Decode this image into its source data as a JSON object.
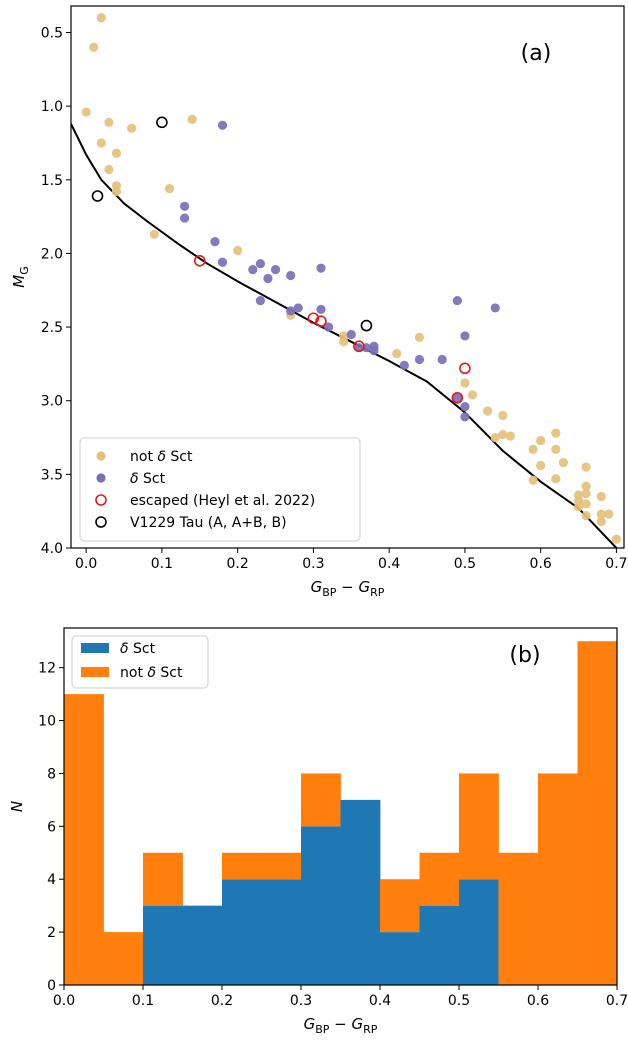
{
  "chart_data": [
    {
      "type": "scatter",
      "panel_label": "(a)",
      "xlabel": "G_BP − G_RP",
      "ylabel": "M_G",
      "xlim": [
        -0.02,
        0.71
      ],
      "ylim": [
        4.0,
        0.32
      ],
      "y_inverted": true,
      "xticks": [
        "0.0",
        "0.1",
        "0.2",
        "0.3",
        "0.4",
        "0.5",
        "0.6",
        "0.7"
      ],
      "yticks": [
        "0.5",
        "1.0",
        "1.5",
        "2.0",
        "2.5",
        "3.0",
        "3.5",
        "4.0"
      ],
      "legend_position": "lower-left",
      "series": [
        {
          "name": "not δ Sct",
          "color": "#e5c07b",
          "points": [
            [
              0.02,
              0.4
            ],
            [
              0.01,
              0.6
            ],
            [
              0.0,
              1.04
            ],
            [
              0.03,
              1.11
            ],
            [
              0.02,
              1.25
            ],
            [
              0.06,
              1.15
            ],
            [
              0.14,
              1.09
            ],
            [
              0.04,
              1.32
            ],
            [
              0.03,
              1.43
            ],
            [
              0.04,
              1.54
            ],
            [
              0.04,
              1.58
            ],
            [
              0.11,
              1.56
            ],
            [
              0.09,
              1.87
            ],
            [
              0.2,
              1.98
            ],
            [
              0.27,
              2.42
            ],
            [
              0.34,
              2.56
            ],
            [
              0.34,
              2.6
            ],
            [
              0.41,
              2.68
            ],
            [
              0.44,
              2.57
            ],
            [
              0.5,
              2.88
            ],
            [
              0.51,
              2.96
            ],
            [
              0.53,
              3.07
            ],
            [
              0.55,
              3.1
            ],
            [
              0.54,
              3.25
            ],
            [
              0.55,
              3.23
            ],
            [
              0.56,
              3.24
            ],
            [
              0.59,
              3.33
            ],
            [
              0.6,
              3.27
            ],
            [
              0.62,
              3.22
            ],
            [
              0.62,
              3.33
            ],
            [
              0.6,
              3.44
            ],
            [
              0.63,
              3.42
            ],
            [
              0.59,
              3.54
            ],
            [
              0.62,
              3.53
            ],
            [
              0.65,
              3.64
            ],
            [
              0.65,
              3.68
            ],
            [
              0.66,
              3.45
            ],
            [
              0.66,
              3.58
            ],
            [
              0.66,
              3.63
            ],
            [
              0.66,
              3.7
            ],
            [
              0.66,
              3.78
            ],
            [
              0.68,
              3.65
            ],
            [
              0.68,
              3.77
            ],
            [
              0.69,
              3.77
            ],
            [
              0.68,
              3.82
            ],
            [
              0.7,
              3.94
            ],
            [
              0.65,
              3.72
            ]
          ]
        },
        {
          "name": "δ Sct",
          "color": "#7b6fb5",
          "points": [
            [
              0.18,
              1.13
            ],
            [
              0.13,
              1.68
            ],
            [
              0.13,
              1.76
            ],
            [
              0.17,
              1.92
            ],
            [
              0.18,
              2.06
            ],
            [
              0.22,
              2.11
            ],
            [
              0.23,
              2.07
            ],
            [
              0.25,
              2.11
            ],
            [
              0.27,
              2.15
            ],
            [
              0.24,
              2.17
            ],
            [
              0.31,
              2.1
            ],
            [
              0.23,
              2.32
            ],
            [
              0.27,
              2.39
            ],
            [
              0.28,
              2.37
            ],
            [
              0.31,
              2.38
            ],
            [
              0.32,
              2.5
            ],
            [
              0.35,
              2.55
            ],
            [
              0.36,
              2.64
            ],
            [
              0.37,
              2.64
            ],
            [
              0.38,
              2.63
            ],
            [
              0.38,
              2.66
            ],
            [
              0.42,
              2.76
            ],
            [
              0.44,
              2.72
            ],
            [
              0.47,
              2.72
            ],
            [
              0.49,
              2.32
            ],
            [
              0.54,
              2.37
            ],
            [
              0.5,
              2.56
            ],
            [
              0.49,
              2.98
            ],
            [
              0.5,
              3.04
            ],
            [
              0.5,
              3.11
            ]
          ]
        },
        {
          "name": "escaped (Heyl et al. 2022)",
          "marker": "open-circle",
          "color": "#e41a1c",
          "points": [
            [
              0.15,
              2.05
            ],
            [
              0.3,
              2.44
            ],
            [
              0.31,
              2.46
            ],
            [
              0.36,
              2.63
            ],
            [
              0.5,
              2.78
            ],
            [
              0.49,
              2.98
            ]
          ]
        },
        {
          "name": "V1229 Tau (A, A+B, B)",
          "marker": "open-circle",
          "color": "#000000",
          "points": [
            [
              0.1,
              1.11
            ],
            [
              0.015,
              1.61
            ],
            [
              0.37,
              2.49
            ]
          ]
        }
      ],
      "curve": {
        "color": "#000000",
        "points": [
          [
            -0.02,
            1.12
          ],
          [
            0.0,
            1.33
          ],
          [
            0.02,
            1.5
          ],
          [
            0.05,
            1.66
          ],
          [
            0.08,
            1.78
          ],
          [
            0.12,
            1.93
          ],
          [
            0.16,
            2.07
          ],
          [
            0.2,
            2.19
          ],
          [
            0.25,
            2.33
          ],
          [
            0.3,
            2.47
          ],
          [
            0.35,
            2.6
          ],
          [
            0.4,
            2.73
          ],
          [
            0.45,
            2.87
          ],
          [
            0.5,
            3.08
          ],
          [
            0.55,
            3.34
          ],
          [
            0.6,
            3.55
          ],
          [
            0.65,
            3.73
          ],
          [
            0.7,
            4.0
          ]
        ]
      }
    },
    {
      "type": "bar",
      "stacked": true,
      "panel_label": "(b)",
      "xlabel": "G_BP − G_RP",
      "ylabel": "N",
      "xlim": [
        0.0,
        0.7
      ],
      "ylim": [
        0,
        13.5
      ],
      "xticks": [
        "0.0",
        "0.1",
        "0.2",
        "0.3",
        "0.4",
        "0.5",
        "0.6",
        "0.7"
      ],
      "yticks": [
        "0",
        "2",
        "4",
        "6",
        "8",
        "10",
        "12"
      ],
      "legend_position": "top-left",
      "bin_edges": [
        0.0,
        0.05,
        0.1,
        0.15,
        0.2,
        0.25,
        0.3,
        0.35,
        0.4,
        0.45,
        0.5,
        0.55,
        0.6,
        0.65,
        0.7
      ],
      "series": [
        {
          "name": "δ Sct",
          "color": "#1f77b4",
          "values": [
            0,
            0,
            3,
            3,
            4,
            4,
            6,
            7,
            2,
            3,
            4,
            0,
            0,
            0
          ]
        },
        {
          "name": "not δ Sct",
          "color": "#ff7f0e",
          "values": [
            11,
            2,
            2,
            0,
            1,
            1,
            2,
            0,
            2,
            2,
            4,
            5,
            8,
            13
          ]
        }
      ]
    }
  ]
}
